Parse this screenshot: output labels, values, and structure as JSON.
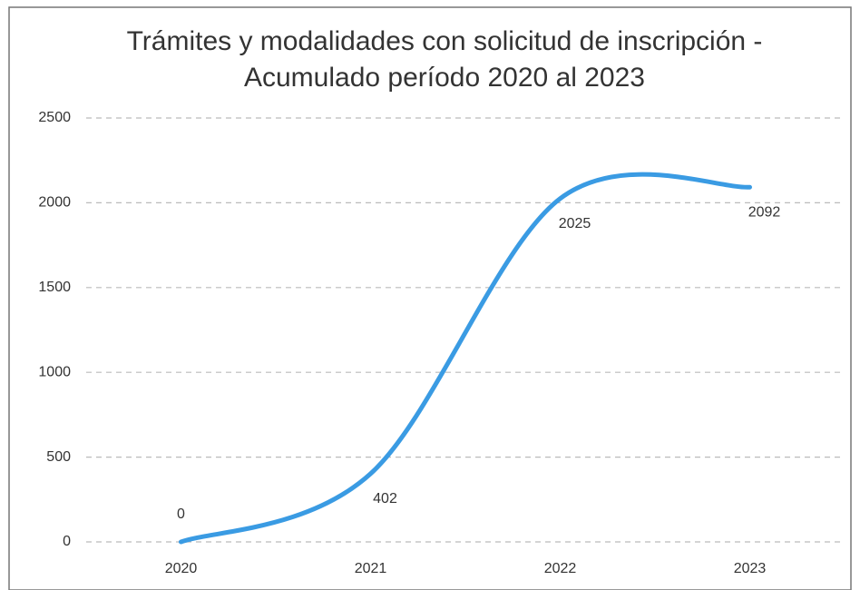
{
  "chart_data": {
    "type": "line",
    "title": "Trámites y modalidades con solicitud de inscripción - Acumulado período 2020 al 2023",
    "categories": [
      "2020",
      "2021",
      "2022",
      "2023"
    ],
    "values": [
      0,
      402,
      2025,
      2092
    ],
    "color": "#3a9be3",
    "ylim": [
      0,
      2500
    ],
    "yticks": [
      0,
      500,
      1000,
      1500,
      2000,
      2500
    ],
    "grid": true,
    "smooth": true
  }
}
